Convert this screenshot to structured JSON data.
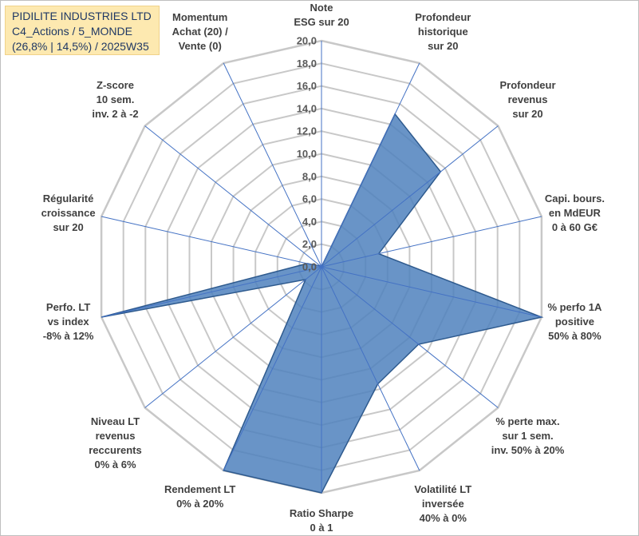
{
  "header": {
    "line1": "PIDILITE INDUSTRIES LTD",
    "line2": "C4_Actions / 5_MONDE",
    "line3": "(26,8% | 14,5%) / 2025W35"
  },
  "chart_data": {
    "type": "radar",
    "title": "",
    "rmin": 0,
    "rmax": 20,
    "tick_step": 2,
    "tick_labels": [
      "0,0",
      "2,0",
      "4,0",
      "6,0",
      "8,0",
      "10,0",
      "12,0",
      "14,0",
      "16,0",
      "18,0",
      "20,0"
    ],
    "grid": true,
    "colors": {
      "fill": "#4f81bd",
      "stroke": "#2e5a8e",
      "grid": "#c8c8c8",
      "spoke": "#4472c4"
    },
    "axes": [
      [
        "Note",
        "ESG sur 20"
      ],
      [
        "Profondeur",
        "historique",
        "sur 20"
      ],
      [
        "Profondeur",
        "revenus",
        "sur 20"
      ],
      [
        "Capi. bours.",
        "en MdEUR",
        "0 à 60 G€"
      ],
      [
        "% perfo 1A",
        "positive",
        "50% à 80%"
      ],
      [
        "% perte max.",
        "sur 1 sem.",
        "inv. 50% à 20%"
      ],
      [
        "Volatilité LT",
        "inversée",
        "40% à 0%"
      ],
      [
        "Ratio Sharpe",
        "0 à 1"
      ],
      [
        "Rendement LT",
        "0% à 20%"
      ],
      [
        "Niveau LT",
        "revenus",
        "reccurents",
        "0% à 6%"
      ],
      [
        "Perfo. LT",
        "vs index",
        "-8% à 12%"
      ],
      [
        "Régularité",
        "croissance",
        "sur 20"
      ],
      [
        "Z-score",
        "10 sem.",
        "inv. 2 à -2"
      ],
      [
        "Momentum",
        "Achat (20) /",
        "Vente (0)"
      ]
    ],
    "series": [
      {
        "values": [
          0,
          15,
          13.5,
          5.2,
          20,
          11,
          11.5,
          20,
          20,
          1.8,
          20,
          1.3,
          0.1,
          0
        ]
      }
    ]
  }
}
